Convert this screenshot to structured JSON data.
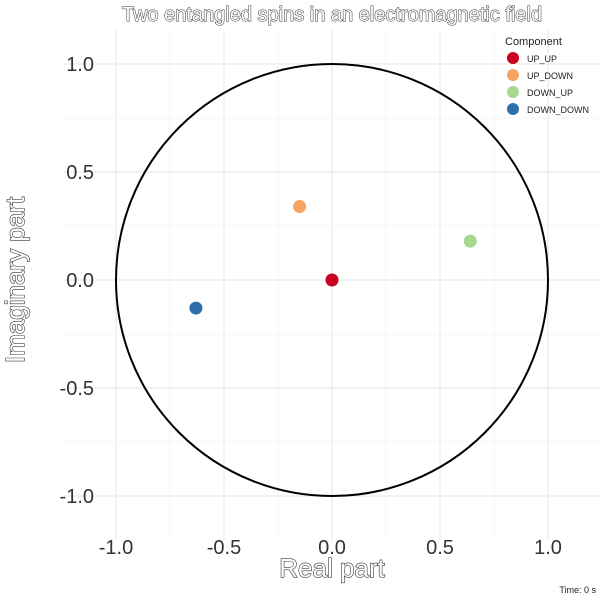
{
  "chart_data": {
    "type": "scatter",
    "title": "Two entangled spins in an electromagnetic field",
    "xlabel": "Real part",
    "ylabel": "Imaginary part",
    "xlim": [
      -1.2,
      1.2
    ],
    "ylim": [
      -1.2,
      1.2
    ],
    "x_ticks": [
      "-1.0",
      "-0.5",
      "0.0",
      "0.5",
      "1.0"
    ],
    "y_ticks": [
      "1.0",
      "0.5",
      "0.0",
      "-0.5",
      "-1.0"
    ],
    "grid": true,
    "unit_circle": true,
    "legend": {
      "title": "Component",
      "position": "top-right"
    },
    "series": [
      {
        "name": "UP_UP",
        "color": "#ca0020",
        "x": 0.0,
        "y": 0.0
      },
      {
        "name": "UP_DOWN",
        "color": "#f4a460",
        "x": -0.15,
        "y": 0.34
      },
      {
        "name": "DOWN_UP",
        "color": "#a6d98f",
        "x": 0.64,
        "y": 0.18
      },
      {
        "name": "DOWN_DOWN",
        "color": "#2c6faa",
        "x": -0.63,
        "y": -0.13
      }
    ],
    "caption": "Time: 0 s"
  }
}
